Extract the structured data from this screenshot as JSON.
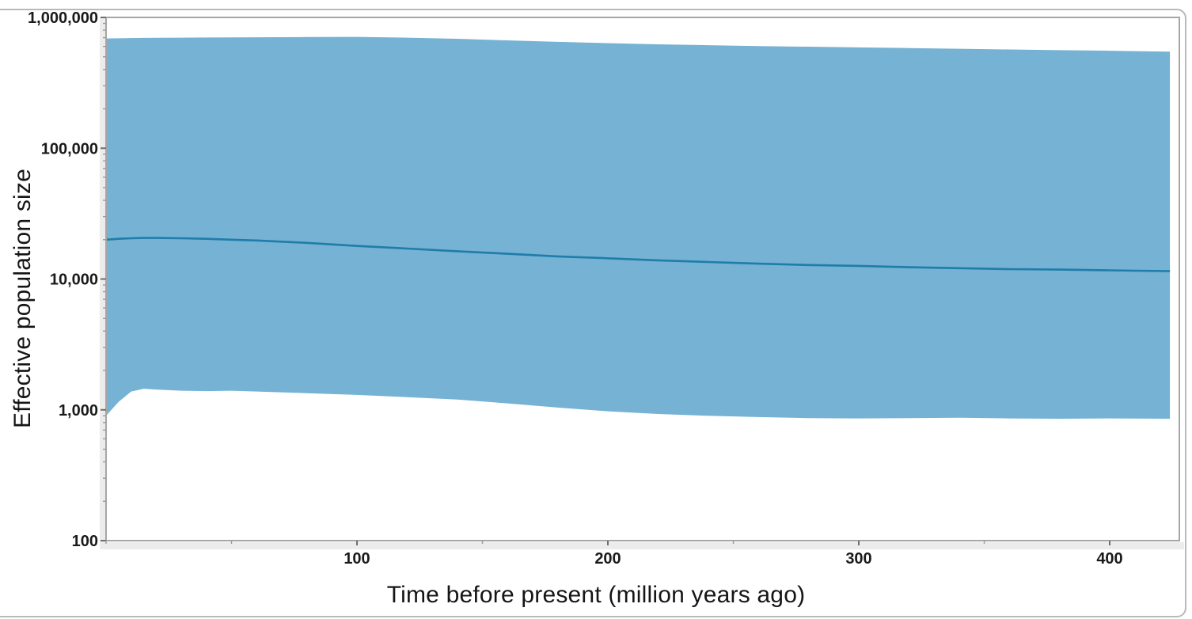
{
  "figure": {
    "title": "",
    "description": "Effective population size through time with confidence interval band"
  },
  "chart_data": {
    "type": "area",
    "title": "",
    "xlabel": "Time before present (million years ago)",
    "ylabel": "Effective population size",
    "x_scale": "linear",
    "y_scale": "log10",
    "xlim": [
      0,
      428
    ],
    "ylim": [
      100,
      1000000
    ],
    "x_major_ticks": [
      100,
      200,
      300,
      400
    ],
    "x_major_tick_labels": [
      "100",
      "200",
      "300",
      "400"
    ],
    "x_minor_ticks": [
      0,
      50,
      150,
      250,
      350
    ],
    "y_major_ticks": [
      100,
      1000,
      10000,
      100000,
      1000000
    ],
    "y_tick_labels": [
      "100",
      "1,000",
      "10,000",
      "100,000",
      "1,000,000"
    ],
    "grid": false,
    "legend_position": "none",
    "x": [
      0,
      5,
      10,
      15,
      20,
      30,
      40,
      50,
      60,
      80,
      100,
      120,
      140,
      160,
      180,
      200,
      220,
      240,
      260,
      280,
      300,
      320,
      340,
      360,
      380,
      400,
      410,
      424
    ],
    "series": [
      {
        "name": "CI upper bound",
        "role": "band_upper",
        "values": [
          690000,
          692000,
          695000,
          697000,
          698000,
          700000,
          702000,
          703000,
          705000,
          708000,
          710000,
          700000,
          686000,
          668000,
          650000,
          636000,
          623000,
          613000,
          604000,
          597000,
          590000,
          583000,
          576000,
          569000,
          562000,
          556000,
          552000,
          548000
        ]
      },
      {
        "name": "Median effective population size",
        "role": "median_line",
        "values": [
          20000,
          20300,
          20500,
          20600,
          20600,
          20500,
          20300,
          20000,
          19700,
          18900,
          17900,
          17100,
          16300,
          15600,
          14900,
          14400,
          13900,
          13500,
          13100,
          12800,
          12600,
          12300,
          12100,
          11900,
          11800,
          11650,
          11580,
          11500
        ]
      },
      {
        "name": "CI lower bound",
        "role": "band_lower",
        "values": [
          900,
          1150,
          1380,
          1450,
          1430,
          1400,
          1390,
          1400,
          1380,
          1340,
          1300,
          1250,
          1200,
          1120,
          1040,
          975,
          930,
          900,
          880,
          865,
          860,
          865,
          870,
          860,
          855,
          860,
          858,
          855
        ]
      }
    ],
    "colors": {
      "band": "#75b2d3",
      "median_line": "#1e7da9",
      "frame": "#a6a6a6",
      "tick": "#6e6e6e",
      "text": "#1a1a1a",
      "shadow": "#ececec",
      "outer_border": "#b9b9b9"
    }
  }
}
